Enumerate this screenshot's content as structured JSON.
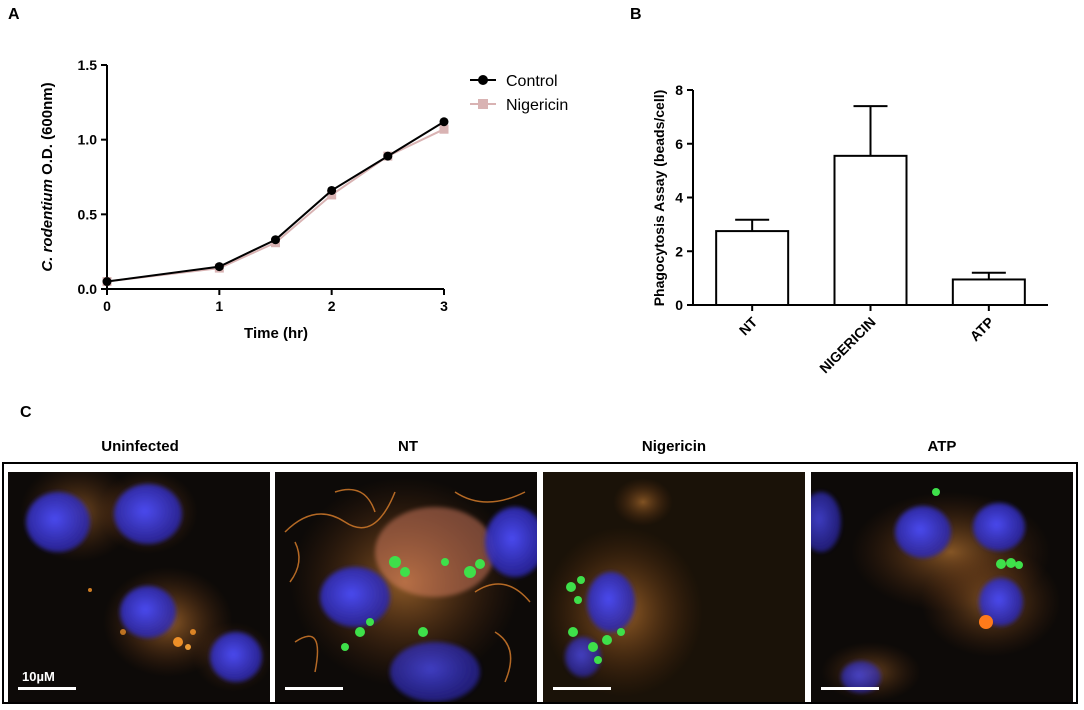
{
  "panel_labels": {
    "a": "A",
    "b": "B",
    "c": "C"
  },
  "chart_data": [
    {
      "type": "line",
      "xlabel": "Time (hr)",
      "ylabel_italic": "C. rodentium",
      "ylabel_rest": " O.D. (600nm)",
      "xlim": [
        0,
        3
      ],
      "ylim": [
        0,
        1.5
      ],
      "xticks": [
        "0",
        "1",
        "2",
        "3"
      ],
      "yticks": [
        "0.0",
        "0.5",
        "1.0",
        "1.5"
      ],
      "legend_position": "top-right",
      "series": [
        {
          "name": "Control",
          "color": "#000000",
          "marker": "circle",
          "x": [
            0,
            1,
            1.5,
            2,
            2.5,
            3
          ],
          "y": [
            0.05,
            0.15,
            0.33,
            0.66,
            0.89,
            1.12
          ]
        },
        {
          "name": "Nigericin",
          "color": "#d9b3b3",
          "marker": "square",
          "x": [
            0,
            1,
            1.5,
            2,
            2.5,
            3
          ],
          "y": [
            0.05,
            0.14,
            0.31,
            0.63,
            0.89,
            1.07
          ]
        }
      ]
    },
    {
      "type": "bar",
      "ylabel": "Phagocytosis Assay (beads/cell)",
      "categories": [
        "NT",
        "NIGERICIN",
        "ATP"
      ],
      "values": [
        2.75,
        5.55,
        0.95
      ],
      "errors": [
        0.42,
        1.85,
        0.25
      ],
      "ylim": [
        0,
        8
      ],
      "yticks": [
        "0",
        "2",
        "4",
        "6",
        "8"
      ]
    }
  ],
  "microscopy": {
    "titles": [
      "Uninfected",
      "NT",
      "Nigericin",
      "ATP"
    ],
    "scale_bar_label": "10µM",
    "colors": {
      "background": "#0d0a08",
      "nucleus": "#3a3ad0",
      "cytoplasm": "#d2742a",
      "bead": "#3ee04a"
    }
  }
}
